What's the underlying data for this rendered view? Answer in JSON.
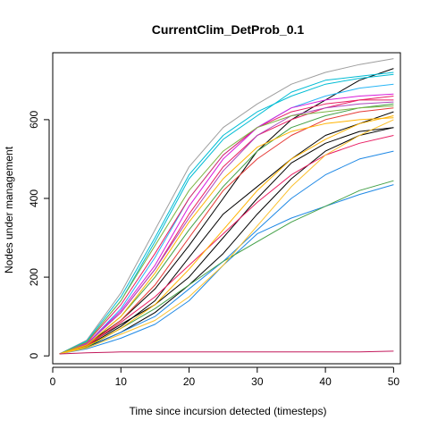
{
  "chart_data": {
    "type": "line",
    "title": "CurrentClim_DetProb_0.1",
    "xlabel": "Time since incursion detected (timesteps)",
    "ylabel": "Nodes under management",
    "xlim": [
      0,
      51
    ],
    "ylim": [
      -20,
      770
    ],
    "x_ticks": [
      0,
      10,
      20,
      30,
      40,
      50
    ],
    "y_ticks": [
      0,
      200,
      400,
      600
    ],
    "grid": false,
    "legend": "none",
    "x": [
      1,
      5,
      10,
      15,
      20,
      25,
      30,
      35,
      40,
      45,
      50
    ],
    "series": [
      {
        "color": "#9e9e9e",
        "values": [
          5,
          40,
          160,
          320,
          480,
          580,
          640,
          690,
          720,
          740,
          755
        ]
      },
      {
        "color": "#000000",
        "values": [
          5,
          30,
          90,
          170,
          280,
          400,
          520,
          600,
          650,
          700,
          730
        ]
      },
      {
        "color": "#000000",
        "values": [
          5,
          22,
          60,
          110,
          180,
          260,
          360,
          450,
          520,
          560,
          580
        ]
      },
      {
        "color": "#000000",
        "values": [
          5,
          25,
          75,
          140,
          250,
          360,
          430,
          500,
          560,
          590,
          620
        ]
      },
      {
        "color": "#000000",
        "values": [
          5,
          28,
          80,
          130,
          200,
          300,
          400,
          490,
          540,
          570,
          580
        ]
      },
      {
        "color": "#00bcd4",
        "values": [
          5,
          38,
          150,
          300,
          460,
          560,
          620,
          660,
          690,
          705,
          715
        ]
      },
      {
        "color": "#00bcd4",
        "values": [
          5,
          36,
          140,
          290,
          450,
          550,
          610,
          670,
          700,
          710,
          720
        ]
      },
      {
        "color": "#29b6f6",
        "values": [
          5,
          30,
          120,
          250,
          400,
          510,
          580,
          630,
          660,
          680,
          690
        ]
      },
      {
        "color": "#1e88e5",
        "values": [
          5,
          18,
          45,
          80,
          140,
          230,
          310,
          350,
          380,
          410,
          435
        ]
      },
      {
        "color": "#1e88e5",
        "values": [
          5,
          20,
          60,
          100,
          170,
          240,
          320,
          400,
          460,
          500,
          520
        ]
      },
      {
        "color": "#e91e63",
        "values": [
          5,
          32,
          110,
          220,
          360,
          480,
          560,
          600,
          630,
          650,
          660
        ]
      },
      {
        "color": "#e91e63",
        "values": [
          5,
          25,
          85,
          150,
          230,
          310,
          390,
          460,
          510,
          540,
          560
        ]
      },
      {
        "color": "#e91e63",
        "values": [
          5,
          34,
          130,
          260,
          400,
          510,
          580,
          620,
          640,
          650,
          650
        ]
      },
      {
        "color": "#e53935",
        "values": [
          5,
          26,
          90,
          180,
          300,
          420,
          500,
          560,
          600,
          620,
          630
        ]
      },
      {
        "color": "#d81bdb",
        "values": [
          5,
          31,
          115,
          230,
          380,
          500,
          580,
          630,
          650,
          660,
          665
        ]
      },
      {
        "color": "#ab47bc",
        "values": [
          5,
          30,
          110,
          220,
          350,
          470,
          560,
          610,
          630,
          640,
          645
        ]
      },
      {
        "color": "#43a047",
        "values": [
          5,
          28,
          100,
          200,
          320,
          430,
          520,
          580,
          610,
          630,
          640
        ]
      },
      {
        "color": "#43a047",
        "values": [
          5,
          22,
          70,
          120,
          180,
          240,
          290,
          340,
          380,
          420,
          445
        ]
      },
      {
        "color": "#7cb342",
        "values": [
          5,
          35,
          140,
          280,
          420,
          520,
          580,
          610,
          620,
          630,
          635
        ]
      },
      {
        "color": "#ffb300",
        "values": [
          5,
          24,
          70,
          130,
          220,
          320,
          420,
          500,
          550,
          590,
          610
        ]
      },
      {
        "color": "#ffb300",
        "values": [
          5,
          28,
          100,
          210,
          340,
          450,
          530,
          570,
          590,
          600,
          605
        ]
      },
      {
        "color": "#fbc02d",
        "values": [
          5,
          20,
          55,
          90,
          150,
          230,
          330,
          430,
          510,
          560,
          600
        ]
      },
      {
        "color": "#c2185b",
        "values": [
          5,
          8,
          10,
          10,
          10,
          10,
          10,
          10,
          10,
          10,
          12
        ]
      }
    ]
  }
}
